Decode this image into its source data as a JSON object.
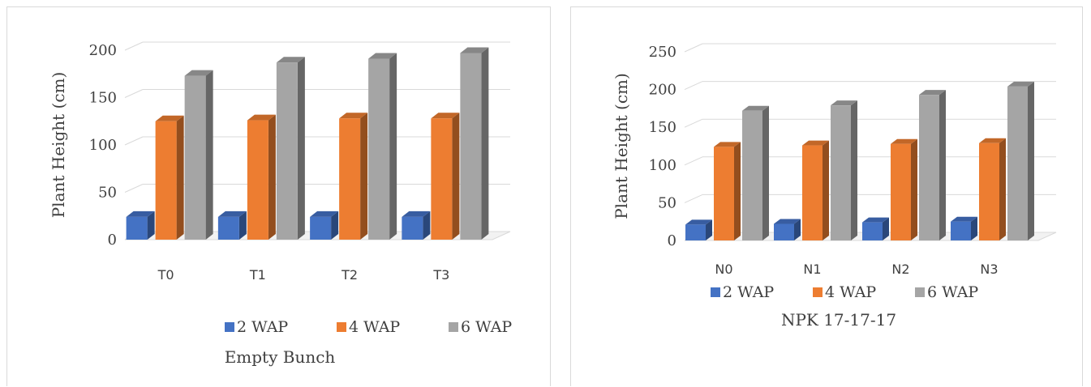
{
  "colors": {
    "2 WAP": "#4472c4",
    "4 WAP": "#ed7d31",
    "6 WAP": "#a5a5a5",
    "grid": "#d9d9d9",
    "text": "#404040"
  },
  "chart_data": [
    {
      "type": "bar",
      "style": "3d-clustered-column",
      "categories": [
        "T0",
        "T1",
        "T2",
        "T3"
      ],
      "series": [
        {
          "name": "2 WAP",
          "values": [
            24,
            24,
            24,
            24
          ]
        },
        {
          "name": "4 WAP",
          "values": [
            125,
            126,
            128,
            128
          ]
        },
        {
          "name": "6 WAP",
          "values": [
            173,
            187,
            191,
            197
          ]
        }
      ],
      "xlabel": "Empty Bunch",
      "ylabel": "Plant Height (cm)",
      "ylim": [
        0,
        200
      ],
      "yticks": [
        0,
        50,
        100,
        150,
        200
      ],
      "grid": true,
      "legend": "bottom"
    },
    {
      "type": "bar",
      "style": "3d-clustered-column",
      "categories": [
        "N0",
        "N1",
        "N2",
        "N3"
      ],
      "series": [
        {
          "name": "2 WAP",
          "values": [
            21,
            22,
            24,
            25
          ]
        },
        {
          "name": "4 WAP",
          "values": [
            124,
            126,
            128,
            129
          ]
        },
        {
          "name": "6 WAP",
          "values": [
            172,
            179,
            193,
            204
          ]
        }
      ],
      "xlabel": "NPK 17-17-17",
      "ylabel": "Plant Height (cm)",
      "ylim": [
        0,
        250
      ],
      "yticks": [
        0,
        50,
        100,
        150,
        200,
        250
      ],
      "grid": true,
      "legend": "bottom"
    }
  ]
}
